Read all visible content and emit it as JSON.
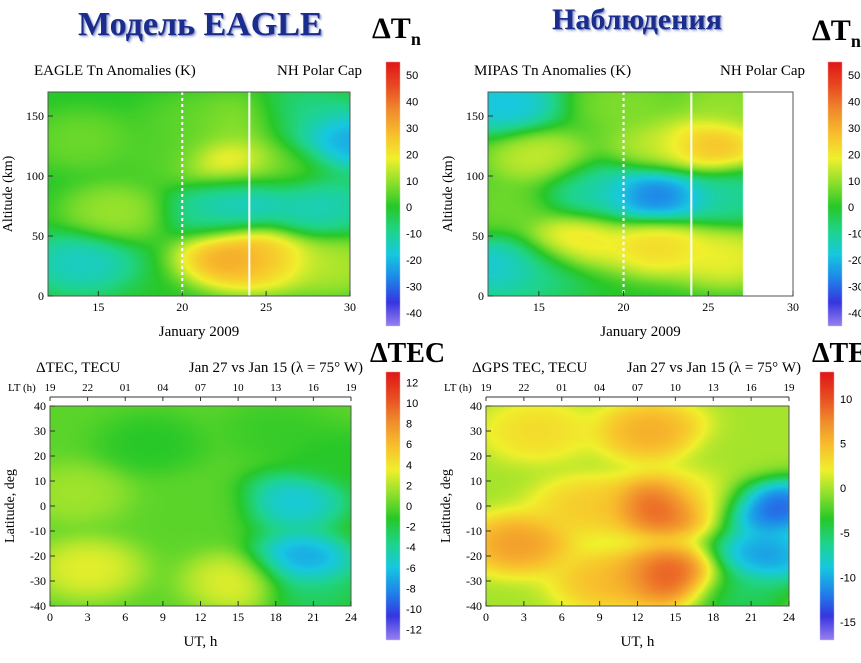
{
  "headings": {
    "model": "Модель EAGLE",
    "observations": "Наблюдения"
  },
  "colorbar_symbols": {
    "dtn_main": "ΔT",
    "dtn_sub": "n",
    "dtec": "ΔTEC",
    "dtec_clipped": "ΔTE"
  },
  "colormap": [
    "#9a82f0",
    "#3636e0",
    "#1f86ea",
    "#17c8e0",
    "#1fd48a",
    "#28c828",
    "#8ee02c",
    "#f0f02c",
    "#f8c02c",
    "#f08c2c",
    "#e84c22",
    "#e01818"
  ],
  "chart_data": [
    {
      "id": "eagle-tn",
      "type": "heatmap",
      "title_left": "EAGLE Tn Anomalies (K)",
      "title_right": "NH Polar Cap",
      "xlabel": "January 2009",
      "ylabel": "Altitude (km)",
      "xlim": [
        12,
        30
      ],
      "ylim": [
        0,
        170
      ],
      "xticks": [
        15,
        20,
        25,
        30
      ],
      "yticks": [
        0,
        50,
        100,
        150
      ],
      "colorbar_ticks": [
        -40,
        -30,
        -20,
        -10,
        0,
        10,
        20,
        30,
        40,
        50
      ],
      "colorbar_range": [
        -45,
        55
      ],
      "vlines": [
        {
          "x": 20,
          "style": "dotted"
        },
        {
          "x": 24,
          "style": "solid"
        }
      ],
      "data_end_x": 30,
      "features": [
        {
          "x": 14,
          "y": 28,
          "value": -18
        },
        {
          "x": 16,
          "y": 70,
          "value": 13
        },
        {
          "x": 14,
          "y": 130,
          "value": 8
        },
        {
          "x": 19,
          "y": 115,
          "value": 5
        },
        {
          "x": 23,
          "y": 33,
          "value": 40
        },
        {
          "x": 25,
          "y": 30,
          "value": 28
        },
        {
          "x": 29,
          "y": 25,
          "value": 15
        },
        {
          "x": 23.5,
          "y": 85,
          "value": -22
        },
        {
          "x": 22,
          "y": 70,
          "value": -12
        },
        {
          "x": 28,
          "y": 75,
          "value": -16
        },
        {
          "x": 23,
          "y": 108,
          "value": 30
        },
        {
          "x": 20.5,
          "y": 145,
          "value": 6
        },
        {
          "x": 23.5,
          "y": 145,
          "value": 12
        },
        {
          "x": 29.5,
          "y": 130,
          "value": -28
        },
        {
          "x": 27,
          "y": 150,
          "value": -10
        },
        {
          "x": 26,
          "y": 110,
          "value": 6
        }
      ]
    },
    {
      "id": "mipas-tn",
      "type": "heatmap",
      "title_left": "MIPAS Tn Anomalies (K)",
      "title_right": "NH Polar Cap",
      "xlabel": "January 2009",
      "ylabel": "Altitude (km)",
      "xlim": [
        12,
        30
      ],
      "ylim": [
        0,
        170
      ],
      "xticks": [
        15,
        20,
        25,
        30
      ],
      "yticks": [
        0,
        50,
        100,
        150
      ],
      "colorbar_ticks": [
        -40,
        -30,
        -20,
        -10,
        0,
        10,
        20,
        30,
        40,
        50
      ],
      "colorbar_range": [
        -45,
        55
      ],
      "vlines": [
        {
          "x": 20,
          "style": "dotted"
        },
        {
          "x": 24,
          "style": "solid"
        }
      ],
      "data_end_x": 27,
      "features": [
        {
          "x": 13,
          "y": 25,
          "value": -22
        },
        {
          "x": 15,
          "y": 20,
          "value": -8
        },
        {
          "x": 17,
          "y": 45,
          "value": 26
        },
        {
          "x": 22,
          "y": 42,
          "value": 28
        },
        {
          "x": 26,
          "y": 32,
          "value": 22
        },
        {
          "x": 22,
          "y": 85,
          "value": -35
        },
        {
          "x": 18,
          "y": 88,
          "value": -14
        },
        {
          "x": 26,
          "y": 85,
          "value": -12
        },
        {
          "x": 13,
          "y": 75,
          "value": 8
        },
        {
          "x": 15,
          "y": 115,
          "value": 18
        },
        {
          "x": 22,
          "y": 125,
          "value": 16
        },
        {
          "x": 25,
          "y": 125,
          "value": 35
        },
        {
          "x": 13,
          "y": 160,
          "value": -22
        },
        {
          "x": 20,
          "y": 160,
          "value": 10
        },
        {
          "x": 26,
          "y": 160,
          "value": 12
        }
      ]
    },
    {
      "id": "eagle-tec",
      "type": "heatmap",
      "title_left": "ΔTEC, TECU",
      "title_right": "Jan 27 vs Jan 15 (λ = 75° W)",
      "xlabel": "UT, h",
      "ylabel": "Latitude, deg",
      "xlim": [
        0,
        24
      ],
      "ylim": [
        -40,
        40
      ],
      "xticks": [
        0,
        3,
        6,
        9,
        12,
        15,
        18,
        21,
        24
      ],
      "yticks": [
        -40,
        -30,
        -20,
        -10,
        0,
        10,
        20,
        30,
        40
      ],
      "lt_label": "LT (h)",
      "lt_ticks": [
        "19",
        "22",
        "01",
        "04",
        "07",
        "10",
        "13",
        "16",
        "19"
      ],
      "colorbar_ticks": [
        -12,
        -10,
        -8,
        -6,
        -4,
        -2,
        0,
        2,
        4,
        6,
        8,
        10,
        12
      ],
      "colorbar_range": [
        -13,
        13
      ],
      "data_end_x": 24,
      "features": [
        {
          "x": 3,
          "y": -25,
          "value": 4
        },
        {
          "x": 2,
          "y": 5,
          "value": 2
        },
        {
          "x": 8,
          "y": 25,
          "value": -1.5
        },
        {
          "x": 15,
          "y": -30,
          "value": 4
        },
        {
          "x": 12,
          "y": 0,
          "value": 0
        },
        {
          "x": 20,
          "y": -22,
          "value": -9
        },
        {
          "x": 19.5,
          "y": 2,
          "value": -7
        },
        {
          "x": 21,
          "y": -35,
          "value": -3
        },
        {
          "x": 22.5,
          "y": 20,
          "value": -1.5
        },
        {
          "x": 18,
          "y": 30,
          "value": -1
        }
      ]
    },
    {
      "id": "gps-tec",
      "type": "heatmap",
      "title_left": "ΔGPS TEC, TECU",
      "title_right": "Jan 27 vs Jan 15 (λ  = 75° W)",
      "xlabel": "UT, h",
      "ylabel": "Latitude, deg",
      "xlim": [
        0,
        24
      ],
      "ylim": [
        -40,
        40
      ],
      "xticks": [
        0,
        3,
        6,
        9,
        12,
        15,
        18,
        21,
        24
      ],
      "yticks": [
        -40,
        -30,
        -20,
        -10,
        0,
        10,
        20,
        30,
        40
      ],
      "lt_label": "LT (h)",
      "lt_ticks": [
        "19",
        "22",
        "01",
        "04",
        "07",
        "10",
        "13",
        "16",
        "19"
      ],
      "colorbar_ticks": [
        -15,
        -10,
        -5,
        0,
        5,
        10
      ],
      "colorbar_range": [
        -17,
        13
      ],
      "data_end_x": 24,
      "features": [
        {
          "x": 2.5,
          "y": -15,
          "value": 8
        },
        {
          "x": 4,
          "y": 30,
          "value": 4
        },
        {
          "x": 8,
          "y": 0,
          "value": 5
        },
        {
          "x": 14,
          "y": 0,
          "value": 12
        },
        {
          "x": 14.5,
          "y": -28,
          "value": 12
        },
        {
          "x": 13,
          "y": 30,
          "value": 7
        },
        {
          "x": 22.5,
          "y": 0,
          "value": -16
        },
        {
          "x": 22,
          "y": -20,
          "value": -13
        },
        {
          "x": 20,
          "y": -35,
          "value": -6
        },
        {
          "x": 20,
          "y": 20,
          "value": 0
        },
        {
          "x": 17.5,
          "y": 5,
          "value": 2
        },
        {
          "x": 9.5,
          "y": -30,
          "value": 6
        }
      ]
    }
  ]
}
